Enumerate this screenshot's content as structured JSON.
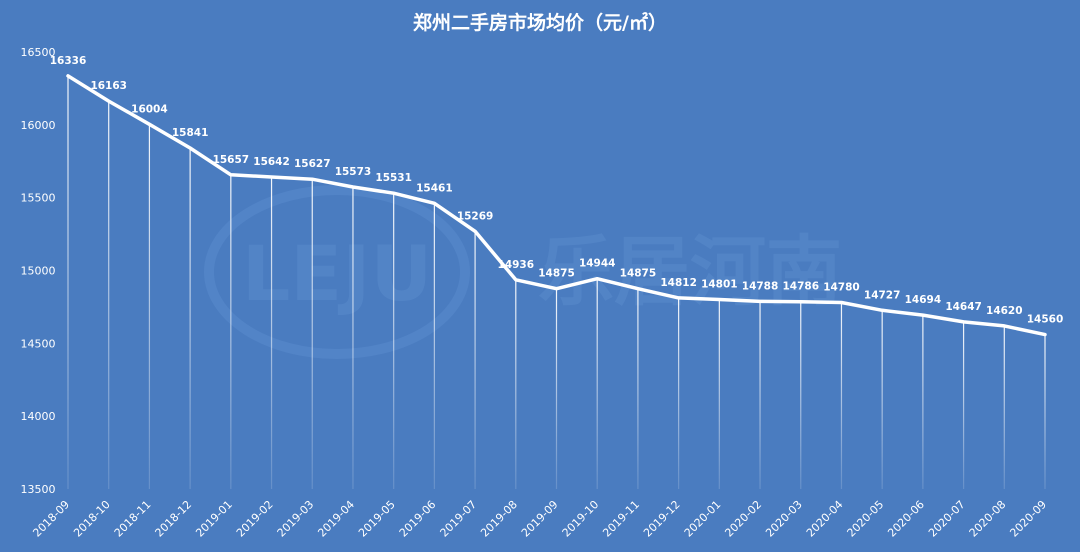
{
  "chart_data": {
    "type": "line",
    "title": "郑州二手房市场均价（元/㎡）",
    "categories": [
      "2018-09",
      "2018-10",
      "2018-11",
      "2018-12",
      "2019-01",
      "2019-02",
      "2019-03",
      "2019-04",
      "2019-05",
      "2019-06",
      "2019-07",
      "2019-08",
      "2019-09",
      "2019-10",
      "2019-11",
      "2019-12",
      "2020-01",
      "2020-02",
      "2020-03",
      "2020-04",
      "2020-05",
      "2020-06",
      "2020-07",
      "2020-08",
      "2020-09"
    ],
    "values": [
      16336,
      16163,
      16004,
      15841,
      15657,
      15642,
      15627,
      15573,
      15531,
      15461,
      15269,
      14936,
      14875,
      14944,
      14875,
      14812,
      14801,
      14788,
      14786,
      14780,
      14727,
      14694,
      14647,
      14620,
      14560
    ],
    "yticks": [
      "13500",
      "14000",
      "14500",
      "15000",
      "15500",
      "16000",
      "16500"
    ],
    "ylim": [
      13500,
      16500
    ],
    "grid": false,
    "drop_lines": true,
    "data_labels": true
  },
  "watermark": {
    "logo_text": "LEJU",
    "cjk_text": "乐居河南"
  },
  "colors": {
    "background": "#4a7cc0",
    "line": "#ffffff",
    "text": "#ffffff",
    "watermark": "#5a8bcc"
  }
}
